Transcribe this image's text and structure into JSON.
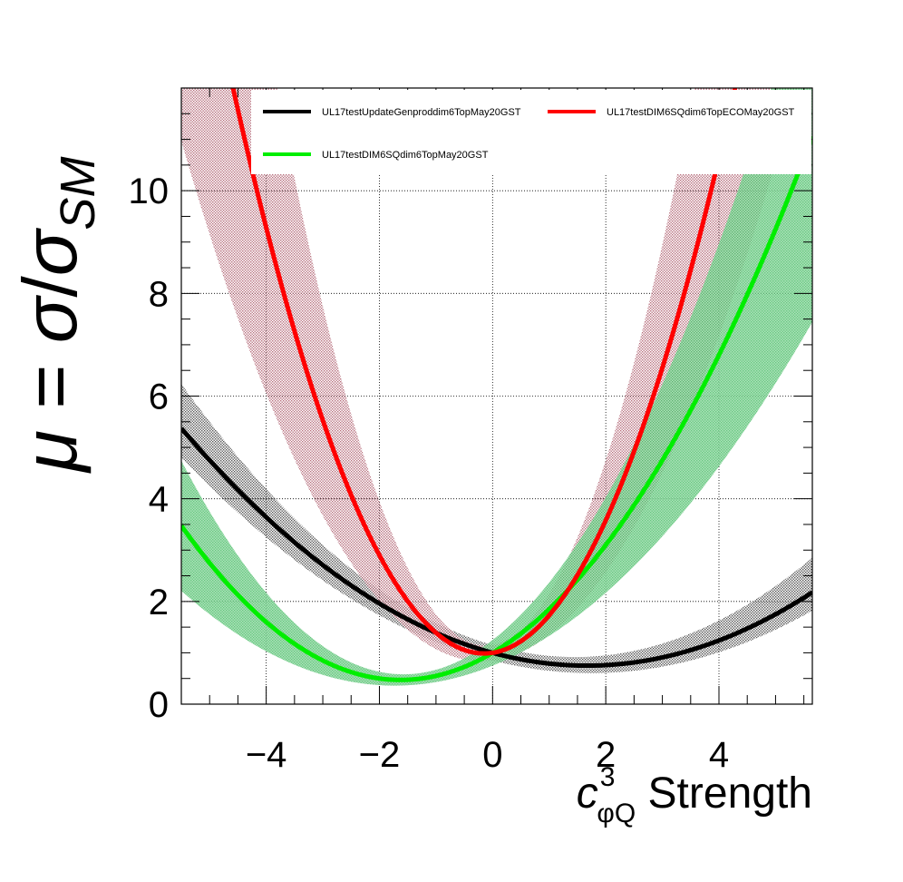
{
  "chart_data": {
    "type": "line",
    "xlabel": {
      "symbol": "c",
      "superscript": "3",
      "subscript": "φQ",
      "suffix": " Strength"
    },
    "ylabel": {
      "mu": "μ",
      "eq": " = ",
      "sigma": "σ",
      "slash": "/",
      "sigma2": "σ",
      "sub": "SM"
    },
    "xlim": [
      -5.5,
      5.65
    ],
    "ylim": [
      0,
      12
    ],
    "x_ticks": [
      -4,
      -2,
      0,
      2,
      4
    ],
    "x_tick_labels": [
      "−4",
      "−2",
      "0",
      "2",
      "4"
    ],
    "y_ticks": [
      0,
      2,
      4,
      6,
      8,
      10
    ],
    "y_tick_labels": [
      "0",
      "2",
      "4",
      "6",
      "8",
      "10"
    ],
    "grid": true,
    "legend_position": "top",
    "series": [
      {
        "name": "UL17testUpdateGenproddim6TopMay20GST",
        "color": "#000000",
        "band_color": "#555555",
        "coeffs": [
          1.0,
          -0.3,
          0.09
        ],
        "band_lo_coeffs": [
          0.85,
          -0.28,
          0.08
        ],
        "band_hi_coeffs": [
          1.15,
          -0.32,
          0.11
        ]
      },
      {
        "name": "UL17testDIM6SQdim6TopECOMay20GST",
        "color": "#ff0000",
        "band_color": "#b06070",
        "coeffs": [
          1.0,
          0.17,
          0.56
        ],
        "band_lo_coeffs": [
          0.85,
          0.14,
          0.36
        ],
        "band_hi_coeffs": [
          1.15,
          0.2,
          0.8
        ]
      },
      {
        "name": "UL17testDIM6SQdim6TopMay20GST",
        "color": "#00ee00",
        "band_color": "#4cbf6a",
        "coeffs": [
          1.0,
          0.65,
          0.2
        ],
        "band_lo_coeffs": [
          0.75,
          0.45,
          0.13
        ],
        "band_hi_coeffs": [
          1.25,
          0.85,
          0.27
        ]
      }
    ]
  }
}
